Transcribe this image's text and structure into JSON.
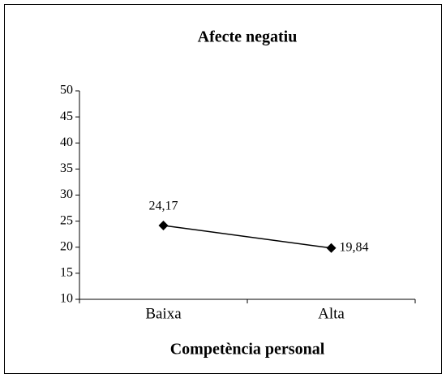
{
  "chart_data": {
    "type": "line",
    "title": "Afecte negatiu",
    "x_label": "Competència personal",
    "categories": [
      "Baixa",
      "Alta"
    ],
    "values": [
      24.17,
      19.84
    ],
    "value_labels": [
      "24,17",
      "19,84"
    ],
    "color": "#000000",
    "ylim": [
      10,
      50
    ],
    "yticks": [
      10,
      15,
      20,
      25,
      30,
      35,
      40,
      45,
      50
    ],
    "grid": false
  }
}
